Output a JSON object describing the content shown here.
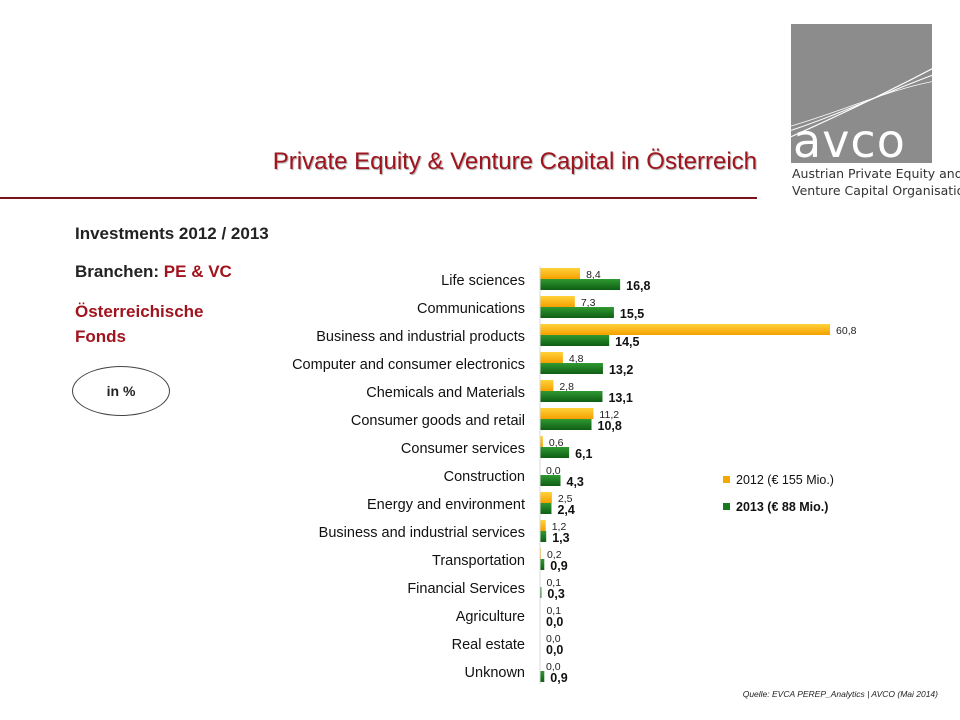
{
  "header": {
    "title": "Private Equity & Venture Capital in Österreich"
  },
  "logo": {
    "word": "avco",
    "subtitle_lines": [
      "Austrian Private Equity and",
      "Venture Capital Organisation"
    ]
  },
  "sidebar": {
    "line1": "Investments 2012 / 2013",
    "line2_prefix": "Branchen: ",
    "line2_accent": "PE & VC",
    "line3": "Österreichische Fonds",
    "badge": "in %"
  },
  "source": "Quelle: EVCA PEREP_Analytics | AVCO (Mai 2014)",
  "colors": {
    "accent": "#a0141e",
    "series_2012": "#f5a800",
    "series_2013": "#167a1e"
  },
  "chart_data": {
    "type": "bar",
    "orientation": "horizontal",
    "categories": [
      "Life sciences",
      "Communications",
      "Business and industrial products",
      "Computer and consumer electronics",
      "Chemicals and Materials",
      "Consumer goods and retail",
      "Consumer services",
      "Construction",
      "Energy and environment",
      "Business and industrial services",
      "Transportation",
      "Financial Services",
      "Agriculture",
      "Real estate",
      "Unknown"
    ],
    "series": [
      {
        "name": "2012 (€ 155 Mio.)",
        "values": [
          8.4,
          7.3,
          60.8,
          4.8,
          2.8,
          11.2,
          0.6,
          0.0,
          2.5,
          1.2,
          0.2,
          0.1,
          0.1,
          0.0,
          0.0
        ],
        "labels": [
          "8,4",
          "7,3",
          "60,8",
          "4,8",
          "2,8",
          "11,2",
          "0,6",
          "0,0",
          "2,5",
          "1,2",
          "0,2",
          "0,1",
          "0,1",
          "0,0",
          "0,0"
        ]
      },
      {
        "name": "2013 (€ 88 Mio.)",
        "values": [
          16.8,
          15.5,
          14.5,
          13.2,
          13.1,
          10.8,
          6.1,
          4.3,
          2.4,
          1.3,
          0.9,
          0.3,
          0.0,
          0.0,
          0.9
        ],
        "labels": [
          "16,8",
          "15,5",
          "14,5",
          "13,2",
          "13,1",
          "10,8",
          "6,1",
          "4,3",
          "2,4",
          "1,3",
          "0,9",
          "0,3",
          "0,0",
          "0,0",
          "0,9"
        ]
      }
    ],
    "legend_position": "right",
    "grid": false
  }
}
